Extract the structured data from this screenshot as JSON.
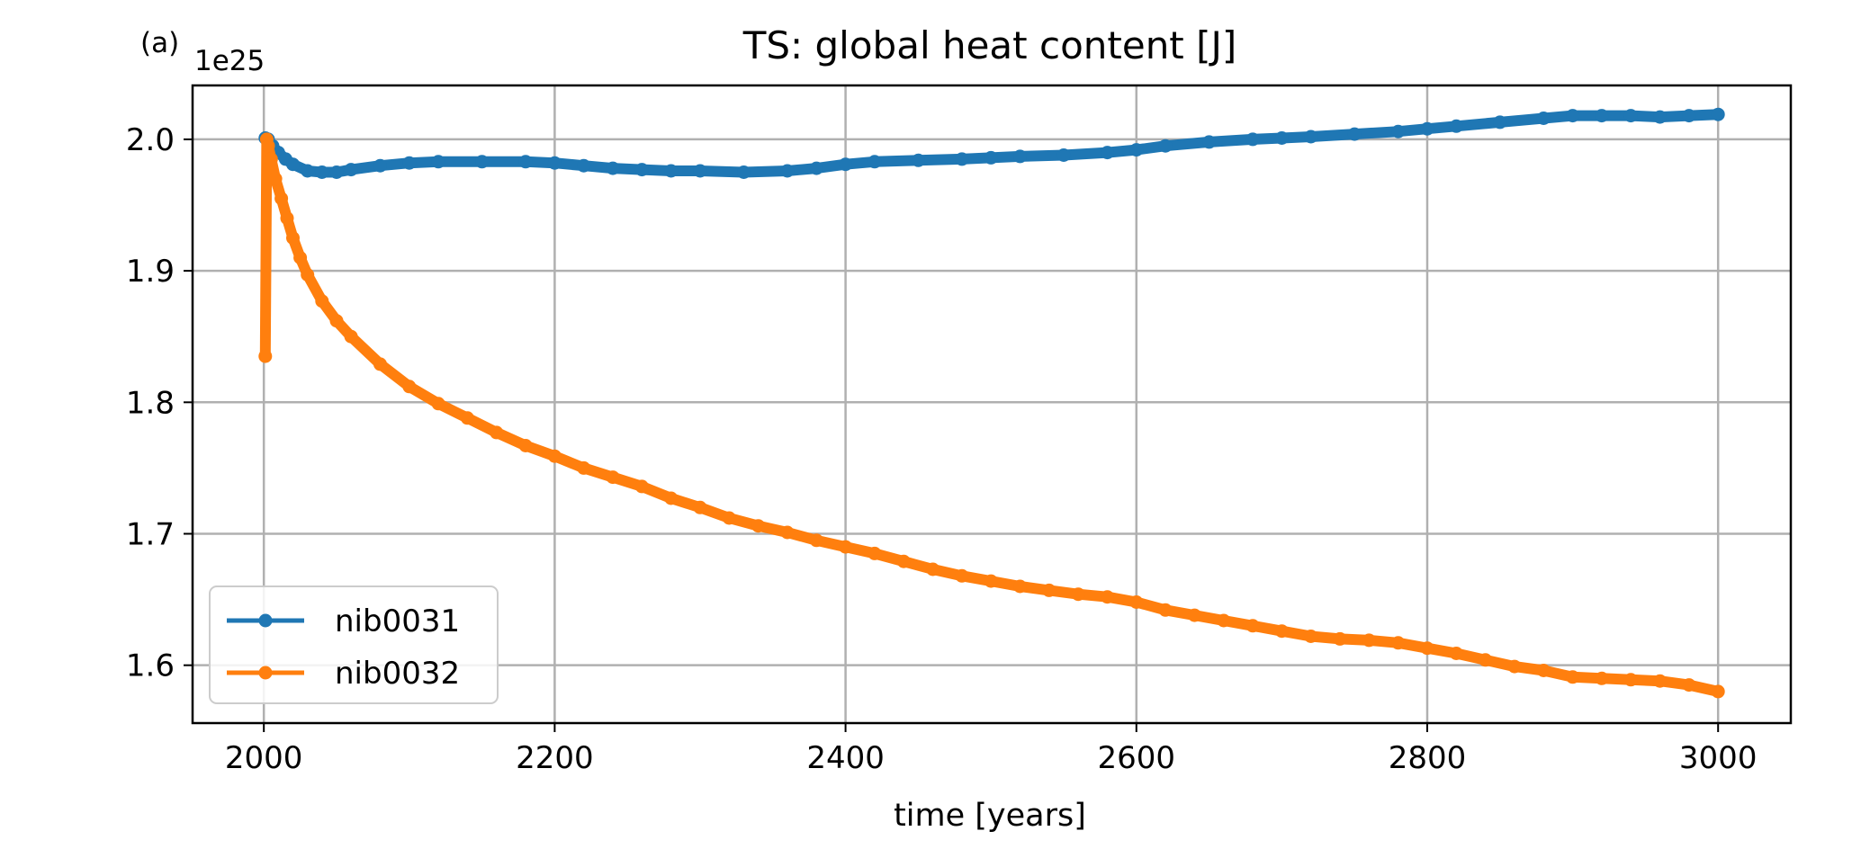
{
  "chart_data": {
    "type": "line",
    "panel_label": "(a)",
    "title": "TS: global heat content [J]",
    "xlabel": "time [years]",
    "ylabel": "",
    "y_offset_label": "1e25",
    "xlim": [
      1951,
      3050
    ],
    "ylim": [
      1.556,
      2.041
    ],
    "x_ticks": [
      2000,
      2200,
      2400,
      2600,
      2800,
      3000
    ],
    "x_tick_labels": [
      "2000",
      "2200",
      "2400",
      "2600",
      "2800",
      "3000"
    ],
    "y_ticks": [
      1.6,
      1.7,
      1.8,
      1.9,
      2.0
    ],
    "y_tick_labels": [
      "1.6",
      "1.7",
      "1.8",
      "1.9",
      "2.0"
    ],
    "grid": true,
    "legend_position": "lower-left",
    "series": [
      {
        "name": "nib0031",
        "color": "#1f77b4",
        "x": [
          2001,
          2003,
          2006,
          2010,
          2015,
          2020,
          2030,
          2040,
          2050,
          2060,
          2080,
          2100,
          2120,
          2150,
          2180,
          2200,
          2220,
          2240,
          2260,
          2280,
          2300,
          2330,
          2360,
          2380,
          2400,
          2420,
          2450,
          2480,
          2500,
          2520,
          2550,
          2580,
          2600,
          2620,
          2650,
          2680,
          2700,
          2720,
          2750,
          2780,
          2800,
          2820,
          2850,
          2880,
          2900,
          2920,
          2940,
          2960,
          2980,
          3000
        ],
        "y": [
          2.001,
          2.0,
          1.995,
          1.99,
          1.985,
          1.981,
          1.976,
          1.975,
          1.975,
          1.977,
          1.98,
          1.982,
          1.983,
          1.983,
          1.983,
          1.982,
          1.98,
          1.978,
          1.977,
          1.976,
          1.976,
          1.975,
          1.976,
          1.978,
          1.981,
          1.983,
          1.984,
          1.985,
          1.986,
          1.987,
          1.988,
          1.99,
          1.992,
          1.995,
          1.998,
          2.0,
          2.001,
          2.002,
          2.004,
          2.006,
          2.008,
          2.01,
          2.013,
          2.016,
          2.018,
          2.018,
          2.018,
          2.017,
          2.018,
          2.019
        ]
      },
      {
        "name": "nib0032",
        "color": "#ff7f0e",
        "x": [
          2001,
          2002,
          2003,
          2005,
          2008,
          2012,
          2016,
          2020,
          2025,
          2030,
          2040,
          2050,
          2060,
          2080,
          2100,
          2120,
          2140,
          2160,
          2180,
          2200,
          2220,
          2240,
          2260,
          2280,
          2300,
          2320,
          2340,
          2360,
          2380,
          2400,
          2420,
          2440,
          2460,
          2480,
          2500,
          2520,
          2540,
          2560,
          2580,
          2600,
          2620,
          2640,
          2660,
          2680,
          2700,
          2720,
          2740,
          2760,
          2780,
          2800,
          2820,
          2840,
          2860,
          2880,
          2900,
          2920,
          2940,
          2960,
          2980,
          3000
        ],
        "y": [
          1.835,
          2.0,
          1.995,
          1.985,
          1.97,
          1.955,
          1.94,
          1.925,
          1.91,
          1.897,
          1.877,
          1.862,
          1.85,
          1.829,
          1.812,
          1.799,
          1.788,
          1.777,
          1.767,
          1.759,
          1.75,
          1.743,
          1.736,
          1.727,
          1.72,
          1.712,
          1.706,
          1.701,
          1.695,
          1.69,
          1.685,
          1.679,
          1.673,
          1.668,
          1.664,
          1.66,
          1.657,
          1.654,
          1.652,
          1.648,
          1.642,
          1.638,
          1.634,
          1.63,
          1.626,
          1.622,
          1.62,
          1.619,
          1.617,
          1.613,
          1.609,
          1.604,
          1.599,
          1.596,
          1.591,
          1.59,
          1.589,
          1.588,
          1.585,
          1.58
        ]
      }
    ]
  }
}
